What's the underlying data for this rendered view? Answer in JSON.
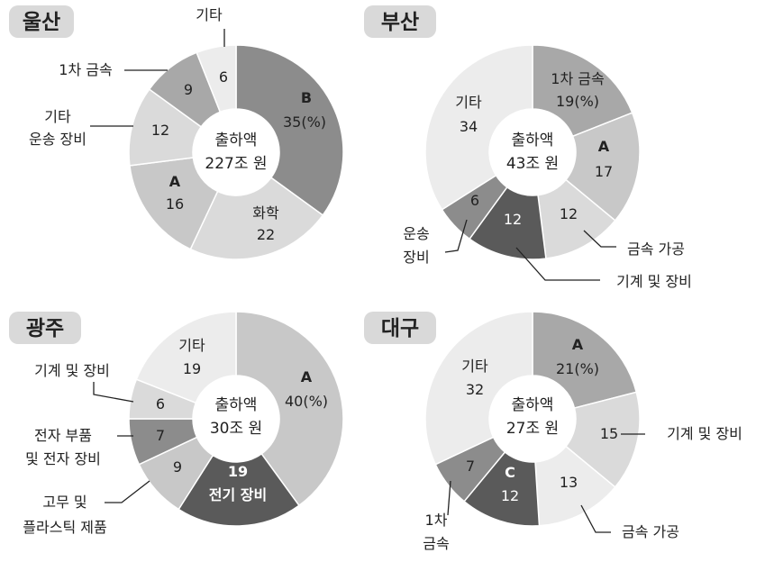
{
  "colors": {
    "darkest": "#5a5a5a",
    "dark": "#8c8c8c",
    "mid": "#a8a8a8",
    "light": "#c8c8c8",
    "lighter": "#dadada",
    "lightest": "#ececec",
    "tag": "#d9d9d9",
    "text": "#222222"
  },
  "chart_data": [
    {
      "type": "pie",
      "region": "울산",
      "center_line1": "출하액",
      "center_line2": "227조 원",
      "slices": [
        {
          "label": "B",
          "value": 35,
          "value_text": "35(%)"
        },
        {
          "label": "화학",
          "value": 22,
          "value_text": "22"
        },
        {
          "label": "A",
          "value": 16,
          "value_text": "16"
        },
        {
          "label": "기타 운송 장비",
          "value": 12,
          "value_text": "12"
        },
        {
          "label": "1차 금속",
          "value": 9,
          "value_text": "9"
        },
        {
          "label": "기타",
          "value": 6,
          "value_text": "6"
        }
      ]
    },
    {
      "type": "pie",
      "region": "부산",
      "center_line1": "출하액",
      "center_line2": "43조 원",
      "slices": [
        {
          "label": "1차 금속",
          "value": 19,
          "value_text": "19(%)"
        },
        {
          "label": "A",
          "value": 17,
          "value_text": "17"
        },
        {
          "label": "금속 가공",
          "value": 12,
          "value_text": "12"
        },
        {
          "label": "기계 및 장비",
          "value": 12,
          "value_text": "12"
        },
        {
          "label": "운송 장비",
          "value": 6,
          "value_text": "6"
        },
        {
          "label": "기타",
          "value": 34,
          "value_text": "34"
        }
      ]
    },
    {
      "type": "pie",
      "region": "광주",
      "center_line1": "출하액",
      "center_line2": "30조 원",
      "slices": [
        {
          "label": "A",
          "value": 40,
          "value_text": "40(%)"
        },
        {
          "label": "전기 장비",
          "value": 19,
          "value_text": "19"
        },
        {
          "label": "고무 및 플라스틱 제품",
          "value": 9,
          "value_text": "9"
        },
        {
          "label": "전자 부품 및 전자 장비",
          "value": 7,
          "value_text": "7"
        },
        {
          "label": "기계 및 장비",
          "value": 6,
          "value_text": "6"
        },
        {
          "label": "기타",
          "value": 19,
          "value_text": "19"
        }
      ]
    },
    {
      "type": "pie",
      "region": "대구",
      "center_line1": "출하액",
      "center_line2": "27조 원",
      "slices": [
        {
          "label": "A",
          "value": 21,
          "value_text": "21(%)"
        },
        {
          "label": "기계 및 장비",
          "value": 15,
          "value_text": "15"
        },
        {
          "label": "금속 가공",
          "value": 13,
          "value_text": "13"
        },
        {
          "label": "C",
          "value": 12,
          "value_text": "12"
        },
        {
          "label": "1차 금속",
          "value": 7,
          "value_text": "7"
        },
        {
          "label": "기타",
          "value": 32,
          "value_text": "32"
        }
      ]
    }
  ]
}
